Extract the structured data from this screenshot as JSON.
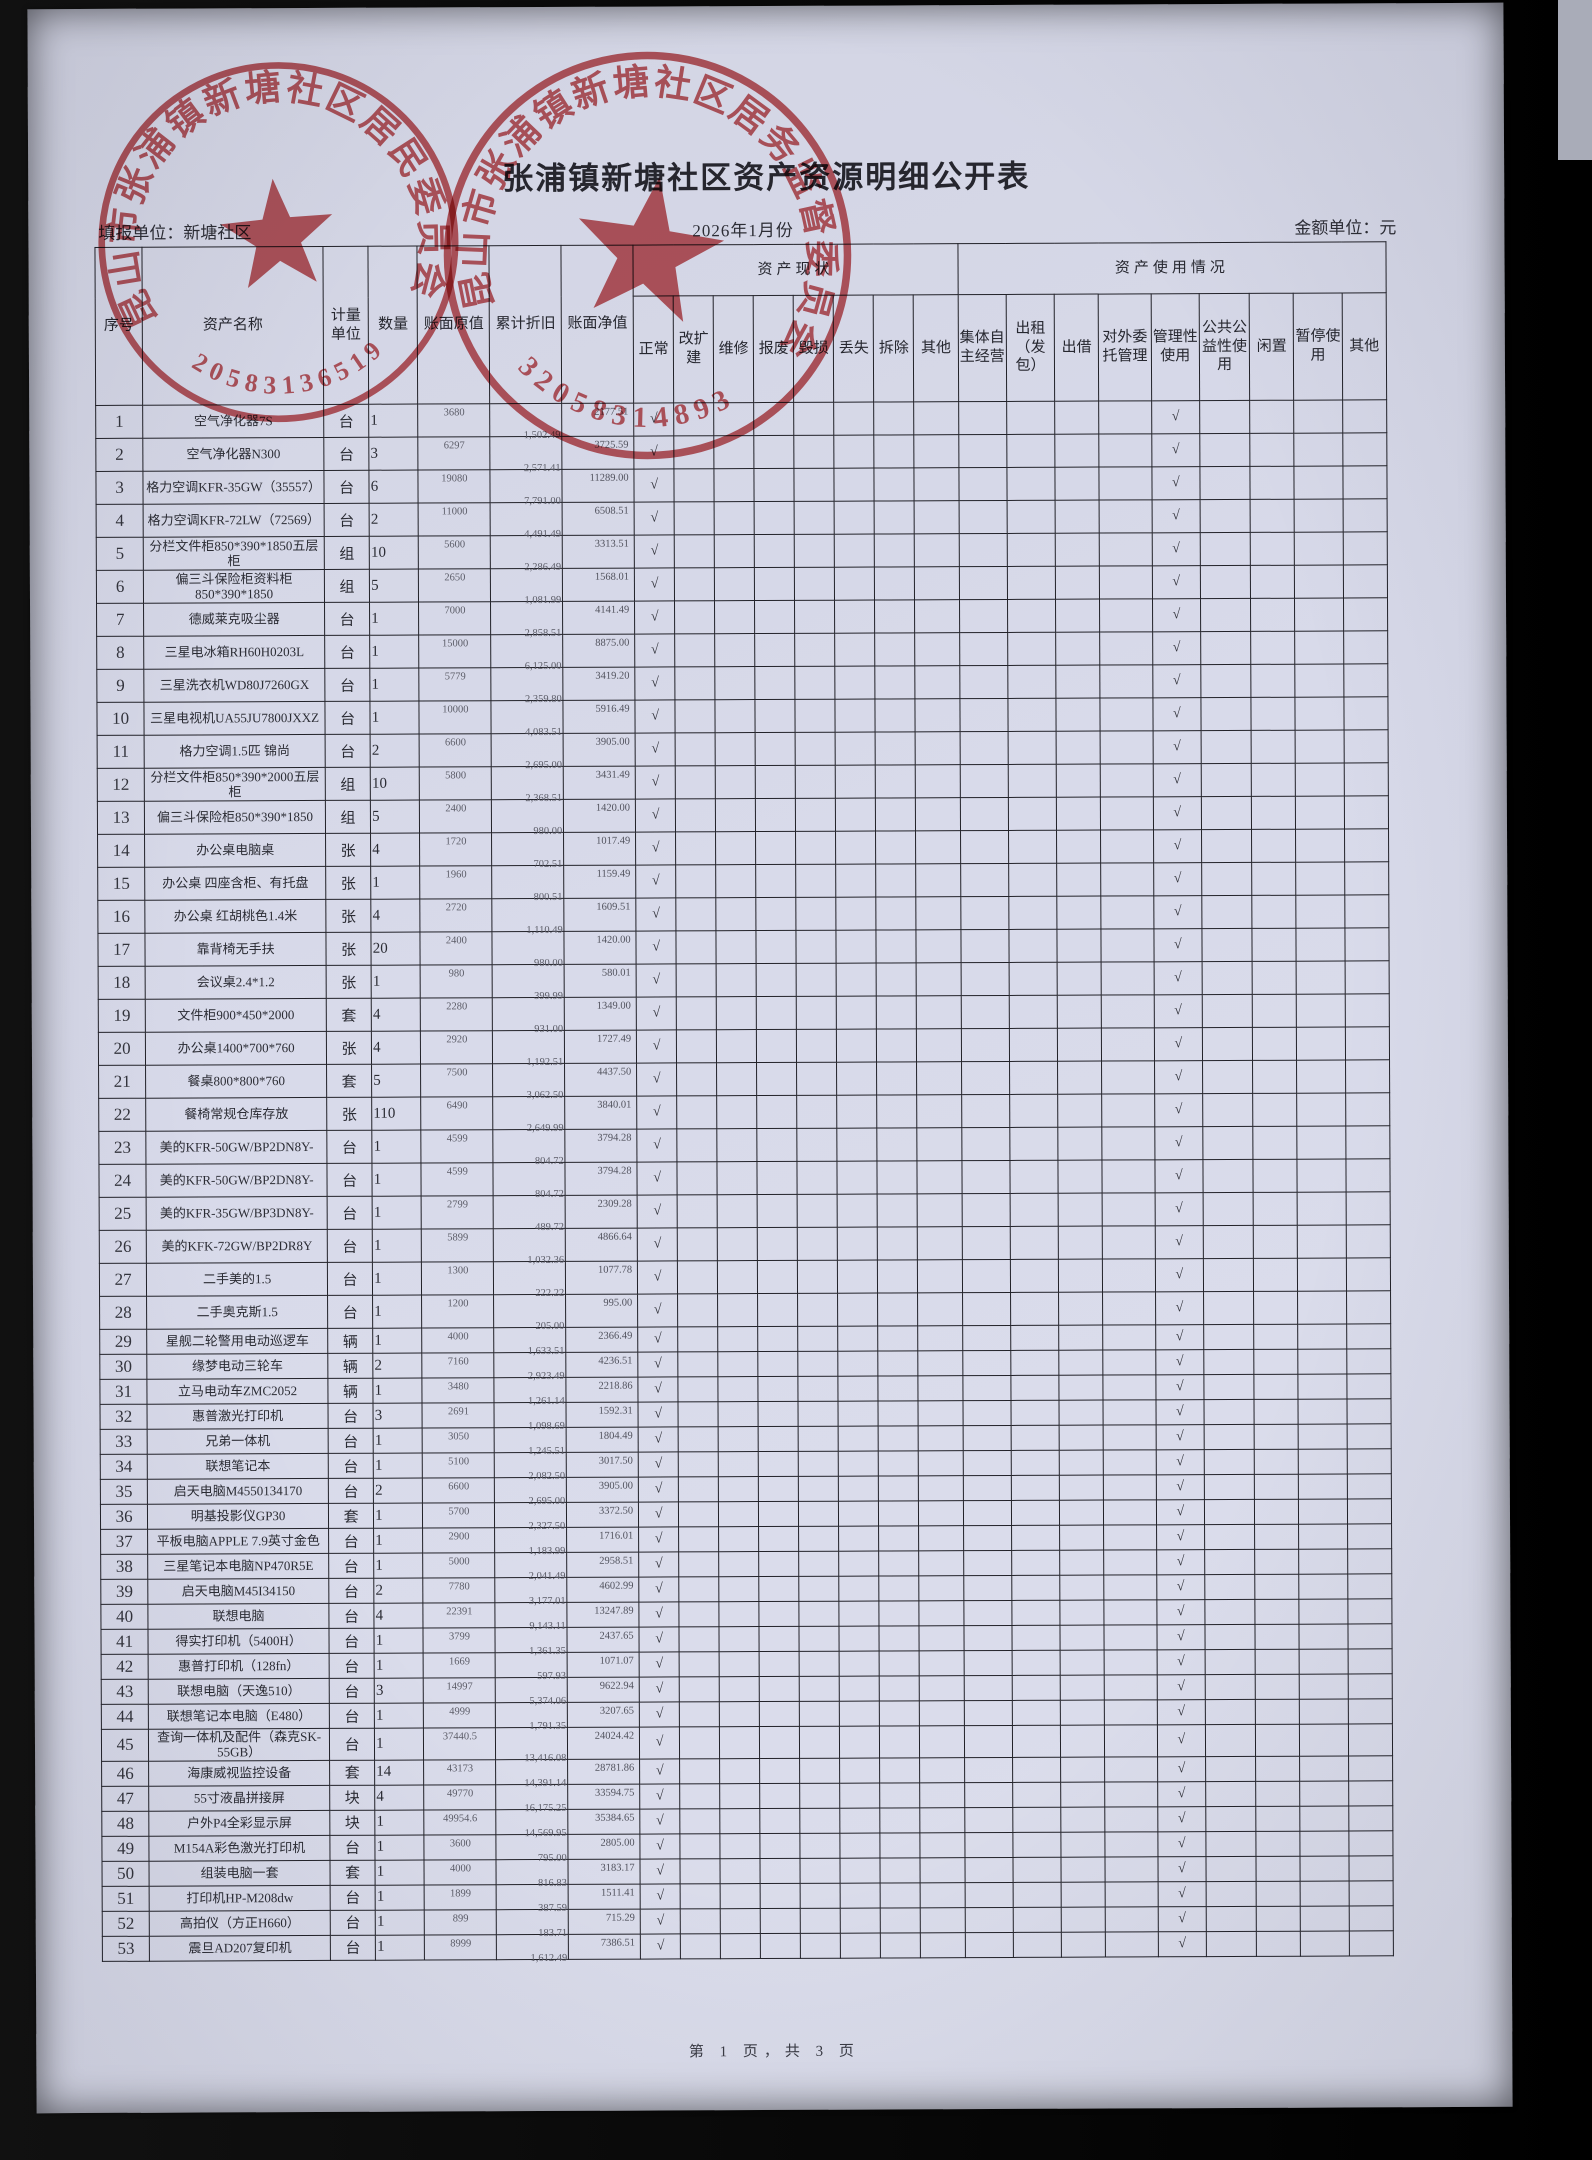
{
  "page": {
    "title": "张浦镇新塘社区资产资源明细公开表",
    "report_unit": "填报单位：新塘社区",
    "period": "2026年1月份",
    "amount_unit": "金额单位：元",
    "footer": "第 1 页，共 3 页"
  },
  "stamps": [
    {
      "ring_text": "昆山市张浦镇新塘社区居民委员会",
      "number": "3205831365197",
      "color": "#bd3a3e"
    },
    {
      "ring_text": "昆山市张浦镇新塘社区居务监督委员会",
      "number": "32058314893",
      "color": "#bd3a3e"
    }
  ],
  "table": {
    "checkmark": "√",
    "headers": {
      "serial": "序号",
      "asset_name": "资产名称",
      "unit": "计量单位",
      "quantity": "数量",
      "book_original": "账面原值",
      "accum_depreciation": "累计折旧",
      "book_net": "账面净值",
      "status_group": "资产现状",
      "status_cols": [
        "正常",
        "改扩建",
        "维修",
        "报废",
        "毁损",
        "丢失",
        "拆除",
        "其他"
      ],
      "usage_group": "资产使用情况",
      "usage_cols": [
        "集体自主经营",
        "出租（发包）",
        "出借",
        "对外委托管理",
        "管理性使用",
        "公共公益性使用",
        "闲置",
        "暂停使用",
        "其他"
      ]
    },
    "rows": [
      {
        "no": 1,
        "name": "空气净化器7S",
        "unit": "台",
        "qty": 1,
        "original_value": "3680",
        "accumulated_depreciation": "1,502.49",
        "net_value": "2177.51",
        "status_normal": true,
        "usage_management": true
      },
      {
        "no": 2,
        "name": "空气净化器N300",
        "unit": "台",
        "qty": 3,
        "original_value": "6297",
        "accumulated_depreciation": "2,571.41",
        "net_value": "3725.59",
        "status_normal": true,
        "usage_management": true
      },
      {
        "no": 3,
        "name": "格力空调KFR-35GW（35557）",
        "unit": "台",
        "qty": 6,
        "original_value": "19080",
        "accumulated_depreciation": "7,791.00",
        "net_value": "11289.00",
        "status_normal": true,
        "usage_management": true
      },
      {
        "no": 4,
        "name": "格力空调KFR-72LW（72569）",
        "unit": "台",
        "qty": 2,
        "original_value": "11000",
        "accumulated_depreciation": "4,491.49",
        "net_value": "6508.51",
        "status_normal": true,
        "usage_management": true
      },
      {
        "no": 5,
        "name": "分栏文件柜850*390*1850五层柜",
        "unit": "组",
        "qty": 10,
        "original_value": "5600",
        "accumulated_depreciation": "2,286.49",
        "net_value": "3313.51",
        "status_normal": true,
        "usage_management": true
      },
      {
        "no": 6,
        "name": "偏三斗保险柜资料柜850*390*1850",
        "unit": "组",
        "qty": 5,
        "original_value": "2650",
        "accumulated_depreciation": "1,081.99",
        "net_value": "1568.01",
        "status_normal": true,
        "usage_management": true
      },
      {
        "no": 7,
        "name": "德威莱克吸尘器",
        "unit": "台",
        "qty": 1,
        "original_value": "7000",
        "accumulated_depreciation": "2,858.51",
        "net_value": "4141.49",
        "status_normal": true,
        "usage_management": true
      },
      {
        "no": 8,
        "name": "三星电冰箱RH60H0203L",
        "unit": "台",
        "qty": 1,
        "original_value": "15000",
        "accumulated_depreciation": "6,125.00",
        "net_value": "8875.00",
        "status_normal": true,
        "usage_management": true
      },
      {
        "no": 9,
        "name": "三星洗衣机WD80J7260GX",
        "unit": "台",
        "qty": 1,
        "original_value": "5779",
        "accumulated_depreciation": "2,359.80",
        "net_value": "3419.20",
        "status_normal": true,
        "usage_management": true
      },
      {
        "no": 10,
        "name": "三星电视机UA55JU7800JXXZ",
        "unit": "台",
        "qty": 1,
        "original_value": "10000",
        "accumulated_depreciation": "4,083.51",
        "net_value": "5916.49",
        "status_normal": true,
        "usage_management": true
      },
      {
        "no": 11,
        "name": "格力空调1.5匹 锦尚",
        "unit": "台",
        "qty": 2,
        "original_value": "6600",
        "accumulated_depreciation": "2,695.00",
        "net_value": "3905.00",
        "status_normal": true,
        "usage_management": true
      },
      {
        "no": 12,
        "name": "分栏文件柜850*390*2000五层柜",
        "unit": "组",
        "qty": 10,
        "original_value": "5800",
        "accumulated_depreciation": "2,368.51",
        "net_value": "3431.49",
        "status_normal": true,
        "usage_management": true
      },
      {
        "no": 13,
        "name": "偏三斗保险柜850*390*1850",
        "unit": "组",
        "qty": 5,
        "original_value": "2400",
        "accumulated_depreciation": "980.00",
        "net_value": "1420.00",
        "status_normal": true,
        "usage_management": true
      },
      {
        "no": 14,
        "name": "办公桌电脑桌",
        "unit": "张",
        "qty": 4,
        "original_value": "1720",
        "accumulated_depreciation": "702.51",
        "net_value": "1017.49",
        "status_normal": true,
        "usage_management": true
      },
      {
        "no": 15,
        "name": "办公桌 四座含柜、有托盘",
        "unit": "张",
        "qty": 1,
        "original_value": "1960",
        "accumulated_depreciation": "800.51",
        "net_value": "1159.49",
        "status_normal": true,
        "usage_management": true
      },
      {
        "no": 16,
        "name": "办公桌 红胡桃色1.4米",
        "unit": "张",
        "qty": 4,
        "original_value": "2720",
        "accumulated_depreciation": "1,110.49",
        "net_value": "1609.51",
        "status_normal": true,
        "usage_management": true
      },
      {
        "no": 17,
        "name": "靠背椅无手扶",
        "unit": "张",
        "qty": 20,
        "original_value": "2400",
        "accumulated_depreciation": "980.00",
        "net_value": "1420.00",
        "status_normal": true,
        "usage_management": true
      },
      {
        "no": 18,
        "name": "会议桌2.4*1.2",
        "unit": "张",
        "qty": 1,
        "original_value": "980",
        "accumulated_depreciation": "399.99",
        "net_value": "580.01",
        "status_normal": true,
        "usage_management": true
      },
      {
        "no": 19,
        "name": "文件柜900*450*2000",
        "unit": "套",
        "qty": 4,
        "original_value": "2280",
        "accumulated_depreciation": "931.00",
        "net_value": "1349.00",
        "status_normal": true,
        "usage_management": true
      },
      {
        "no": 20,
        "name": "办公桌1400*700*760",
        "unit": "张",
        "qty": 4,
        "original_value": "2920",
        "accumulated_depreciation": "1,192.51",
        "net_value": "1727.49",
        "status_normal": true,
        "usage_management": true
      },
      {
        "no": 21,
        "name": "餐桌800*800*760",
        "unit": "套",
        "qty": 5,
        "original_value": "7500",
        "accumulated_depreciation": "3,062.50",
        "net_value": "4437.50",
        "status_normal": true,
        "usage_management": true
      },
      {
        "no": 22,
        "name": "餐椅常规仓库存放",
        "unit": "张",
        "qty": 110,
        "original_value": "6490",
        "accumulated_depreciation": "2,649.99",
        "net_value": "3840.01",
        "status_normal": true,
        "usage_management": true
      },
      {
        "no": 23,
        "name": "美的KFR-50GW/BP2DN8Y-",
        "unit": "台",
        "qty": 1,
        "original_value": "4599",
        "accumulated_depreciation": "804.72",
        "net_value": "3794.28",
        "status_normal": true,
        "usage_management": true
      },
      {
        "no": 24,
        "name": "美的KFR-50GW/BP2DN8Y-",
        "unit": "台",
        "qty": 1,
        "original_value": "4599",
        "accumulated_depreciation": "804.72",
        "net_value": "3794.28",
        "status_normal": true,
        "usage_management": true
      },
      {
        "no": 25,
        "name": "美的KFR-35GW/BP3DN8Y-",
        "unit": "台",
        "qty": 1,
        "original_value": "2799",
        "accumulated_depreciation": "489.72",
        "net_value": "2309.28",
        "status_normal": true,
        "usage_management": true
      },
      {
        "no": 26,
        "name": "美的KFK-72GW/BP2DR8Y",
        "unit": "台",
        "qty": 1,
        "original_value": "5899",
        "accumulated_depreciation": "1,032.36",
        "net_value": "4866.64",
        "status_normal": true,
        "usage_management": true
      },
      {
        "no": 27,
        "name": "二手美的1.5",
        "unit": "台",
        "qty": 1,
        "original_value": "1300",
        "accumulated_depreciation": "222.22",
        "net_value": "1077.78",
        "status_normal": true,
        "usage_management": true
      },
      {
        "no": 28,
        "name": "二手奥克斯1.5",
        "unit": "台",
        "qty": 1,
        "original_value": "1200",
        "accumulated_depreciation": "205.00",
        "net_value": "995.00",
        "status_normal": true,
        "usage_management": true
      },
      {
        "no": 29,
        "name": "星舰二轮警用电动巡逻车",
        "unit": "辆",
        "qty": 1,
        "original_value": "4000",
        "accumulated_depreciation": "1,633.51",
        "net_value": "2366.49",
        "status_normal": true,
        "usage_management": true
      },
      {
        "no": 30,
        "name": "缘梦电动三轮车",
        "unit": "辆",
        "qty": 2,
        "original_value": "7160",
        "accumulated_depreciation": "2,923.49",
        "net_value": "4236.51",
        "status_normal": true,
        "usage_management": true
      },
      {
        "no": 31,
        "name": "立马电动车ZMC2052",
        "unit": "辆",
        "qty": 1,
        "original_value": "3480",
        "accumulated_depreciation": "1,261.14",
        "net_value": "2218.86",
        "status_normal": true,
        "usage_management": true
      },
      {
        "no": 32,
        "name": "惠普激光打印机",
        "unit": "台",
        "qty": 3,
        "original_value": "2691",
        "accumulated_depreciation": "1,098.69",
        "net_value": "1592.31",
        "status_normal": true,
        "usage_management": true
      },
      {
        "no": 33,
        "name": "兄弟一体机",
        "unit": "台",
        "qty": 1,
        "original_value": "3050",
        "accumulated_depreciation": "1,245.51",
        "net_value": "1804.49",
        "status_normal": true,
        "usage_management": true
      },
      {
        "no": 34,
        "name": "联想笔记本",
        "unit": "台",
        "qty": 1,
        "original_value": "5100",
        "accumulated_depreciation": "2,082.50",
        "net_value": "3017.50",
        "status_normal": true,
        "usage_management": true
      },
      {
        "no": 35,
        "name": "启天电脑M4550134170",
        "unit": "台",
        "qty": 2,
        "original_value": "6600",
        "accumulated_depreciation": "2,695.00",
        "net_value": "3905.00",
        "status_normal": true,
        "usage_management": true
      },
      {
        "no": 36,
        "name": "明基投影仪GP30",
        "unit": "套",
        "qty": 1,
        "original_value": "5700",
        "accumulated_depreciation": "2,327.50",
        "net_value": "3372.50",
        "status_normal": true,
        "usage_management": true
      },
      {
        "no": 37,
        "name": "平板电脑APPLE 7.9英寸金色",
        "unit": "台",
        "qty": 1,
        "original_value": "2900",
        "accumulated_depreciation": "1,183.99",
        "net_value": "1716.01",
        "status_normal": true,
        "usage_management": true
      },
      {
        "no": 38,
        "name": "三星笔记本电脑NP470R5E",
        "unit": "台",
        "qty": 1,
        "original_value": "5000",
        "accumulated_depreciation": "2,041.49",
        "net_value": "2958.51",
        "status_normal": true,
        "usage_management": true
      },
      {
        "no": 39,
        "name": "启天电脑M45I34150",
        "unit": "台",
        "qty": 2,
        "original_value": "7780",
        "accumulated_depreciation": "3,177.01",
        "net_value": "4602.99",
        "status_normal": true,
        "usage_management": true
      },
      {
        "no": 40,
        "name": "联想电脑",
        "unit": "台",
        "qty": 4,
        "original_value": "22391",
        "accumulated_depreciation": "9,143.11",
        "net_value": "13247.89",
        "status_normal": true,
        "usage_management": true
      },
      {
        "no": 41,
        "name": "得实打印机（5400H）",
        "unit": "台",
        "qty": 1,
        "original_value": "3799",
        "accumulated_depreciation": "1,361.35",
        "net_value": "2437.65",
        "status_normal": true,
        "usage_management": true
      },
      {
        "no": 42,
        "name": "惠普打印机（128fn）",
        "unit": "台",
        "qty": 1,
        "original_value": "1669",
        "accumulated_depreciation": "597.93",
        "net_value": "1071.07",
        "status_normal": true,
        "usage_management": true
      },
      {
        "no": 43,
        "name": "联想电脑（天逸510）",
        "unit": "台",
        "qty": 3,
        "original_value": "14997",
        "accumulated_depreciation": "5,374.06",
        "net_value": "9622.94",
        "status_normal": true,
        "usage_management": true
      },
      {
        "no": 44,
        "name": "联想笔记本电脑（E480）",
        "unit": "台",
        "qty": 1,
        "original_value": "4999",
        "accumulated_depreciation": "1,791.35",
        "net_value": "3207.65",
        "status_normal": true,
        "usage_management": true
      },
      {
        "no": 45,
        "name": "查询一体机及配件（森克SK-55GB）",
        "unit": "台",
        "qty": 1,
        "original_value": "37440.5",
        "accumulated_depreciation": "13,416.08",
        "net_value": "24024.42",
        "status_normal": true,
        "usage_management": true
      },
      {
        "no": 46,
        "name": "海康威视监控设备",
        "unit": "套",
        "qty": 14,
        "original_value": "43173",
        "accumulated_depreciation": "14,391.14",
        "net_value": "28781.86",
        "status_normal": true,
        "usage_management": true
      },
      {
        "no": 47,
        "name": "55寸液晶拼接屏",
        "unit": "块",
        "qty": 4,
        "original_value": "49770",
        "accumulated_depreciation": "16,175.25",
        "net_value": "33594.75",
        "status_normal": true,
        "usage_management": true
      },
      {
        "no": 48,
        "name": "户外P4全彩显示屏",
        "unit": "块",
        "qty": 1,
        "original_value": "49954.6",
        "accumulated_depreciation": "14,569.95",
        "net_value": "35384.65",
        "status_normal": true,
        "usage_management": true
      },
      {
        "no": 49,
        "name": "M154A彩色激光打印机",
        "unit": "台",
        "qty": 1,
        "original_value": "3600",
        "accumulated_depreciation": "795.00",
        "net_value": "2805.00",
        "status_normal": true,
        "usage_management": true
      },
      {
        "no": 50,
        "name": "组装电脑一套",
        "unit": "套",
        "qty": 1,
        "original_value": "4000",
        "accumulated_depreciation": "816.83",
        "net_value": "3183.17",
        "status_normal": true,
        "usage_management": true
      },
      {
        "no": 51,
        "name": "打印机HP-M208dw",
        "unit": "台",
        "qty": 1,
        "original_value": "1899",
        "accumulated_depreciation": "387.59",
        "net_value": "1511.41",
        "status_normal": true,
        "usage_management": true
      },
      {
        "no": 52,
        "name": "高拍仪（方正H660）",
        "unit": "台",
        "qty": 1,
        "original_value": "899",
        "accumulated_depreciation": "183.71",
        "net_value": "715.29",
        "status_normal": true,
        "usage_management": true
      },
      {
        "no": 53,
        "name": "震旦AD207复印机",
        "unit": "台",
        "qty": 1,
        "original_value": "8999",
        "accumulated_depreciation": "1,612.49",
        "net_value": "7386.51",
        "status_normal": true,
        "usage_management": true
      }
    ]
  }
}
